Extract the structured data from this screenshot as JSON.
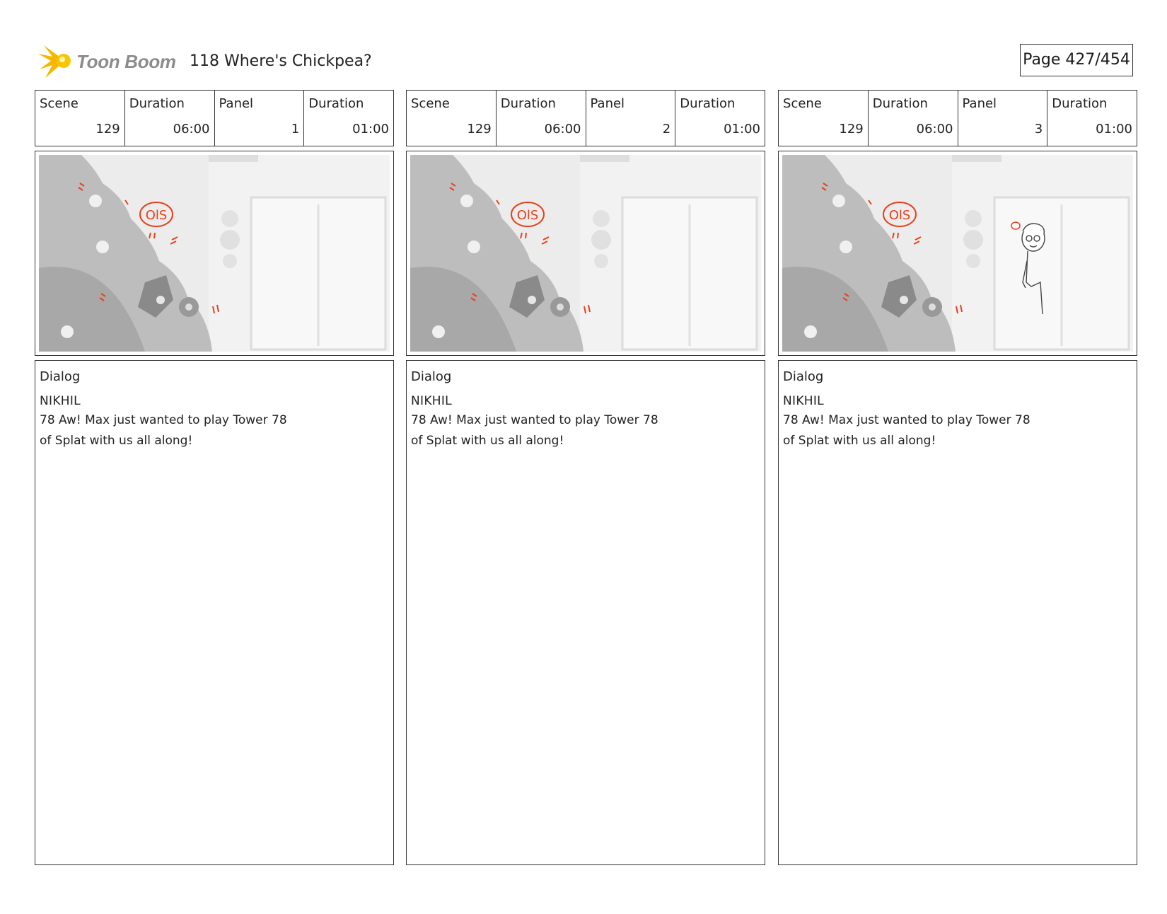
{
  "header": {
    "logo_text": "Toon Boom",
    "title": "118 Where's Chickpea?",
    "page": "Page 427/454"
  },
  "labels": {
    "scene": "Scene",
    "duration": "Duration",
    "panel": "Panel",
    "dialog": "Dialog"
  },
  "panels": [
    {
      "scene": "129",
      "scene_duration": "06:00",
      "panel": "1",
      "panel_duration": "01:00",
      "annotation": "OlS",
      "speaker": "NIKHIL",
      "dialog_line1": "78 Aw! Max just wanted to play Tower 78",
      "dialog_line2": "of Splat with us all along!"
    },
    {
      "scene": "129",
      "scene_duration": "06:00",
      "panel": "2",
      "panel_duration": "01:00",
      "annotation": "OlS",
      "speaker": "NIKHIL",
      "dialog_line1": "78 Aw! Max just wanted to play Tower 78",
      "dialog_line2": "of Splat with us all along!"
    },
    {
      "scene": "129",
      "scene_duration": "06:00",
      "panel": "3",
      "panel_duration": "01:00",
      "annotation": "OlS",
      "speaker": "NIKHIL",
      "dialog_line1": "78 Aw! Max just wanted to play Tower 78",
      "dialog_line2": "of Splat with us all along!"
    }
  ],
  "colors": {
    "annotation": "#e8401c",
    "logo_star": "#f5b800"
  }
}
